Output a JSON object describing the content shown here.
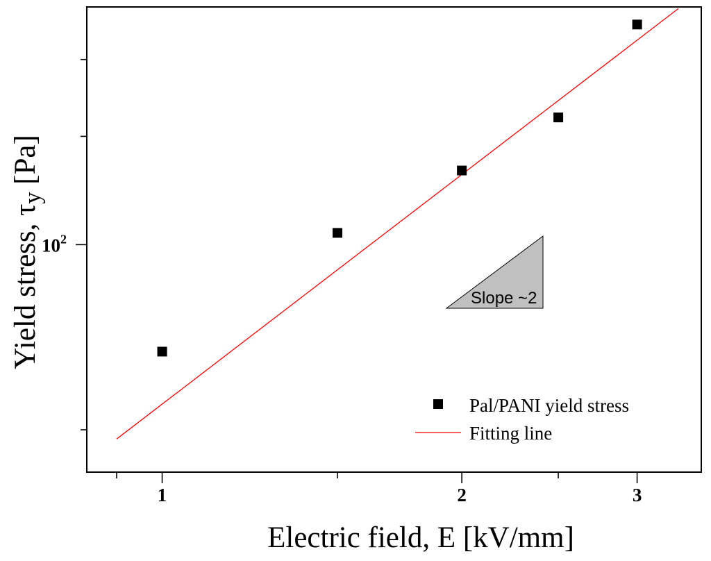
{
  "chart_data": {
    "type": "scatter",
    "xscale": "log",
    "yscale": "log",
    "xlim": [
      0.84,
      3.48
    ],
    "ylim": [
      42.67,
      243.5
    ],
    "xlabel": "Electric field, E [kV/mm]",
    "ylabel_main": "Yield stress, ",
    "ylabel_tau": "τ",
    "ylabel_sub": "y",
    "ylabel_unit": " [Pa]",
    "x_ticks": [
      {
        "value": 1,
        "label": "1"
      },
      {
        "value": 2,
        "label": "2"
      },
      {
        "value": 3,
        "label": "3"
      }
    ],
    "y_ticks": [
      {
        "value": 100,
        "label_base": "10",
        "label_exp": "2"
      }
    ],
    "series": [
      {
        "name": "Pal/PANI yield stress",
        "kind": "points",
        "color": "#000000",
        "x": [
          1.0,
          1.5,
          2.0,
          2.5,
          3.0
        ],
        "y": [
          67,
          104.5,
          132,
          161,
          228
        ]
      },
      {
        "name": "Fitting line",
        "kind": "line",
        "color": "#ff0000",
        "x": [
          0.9,
          3.3
        ],
        "y": [
          48.3,
          242
        ]
      }
    ],
    "legend_position": "bottom-right",
    "annotation": {
      "text": "Slope ~2",
      "fill": "#c0c0c0"
    }
  }
}
